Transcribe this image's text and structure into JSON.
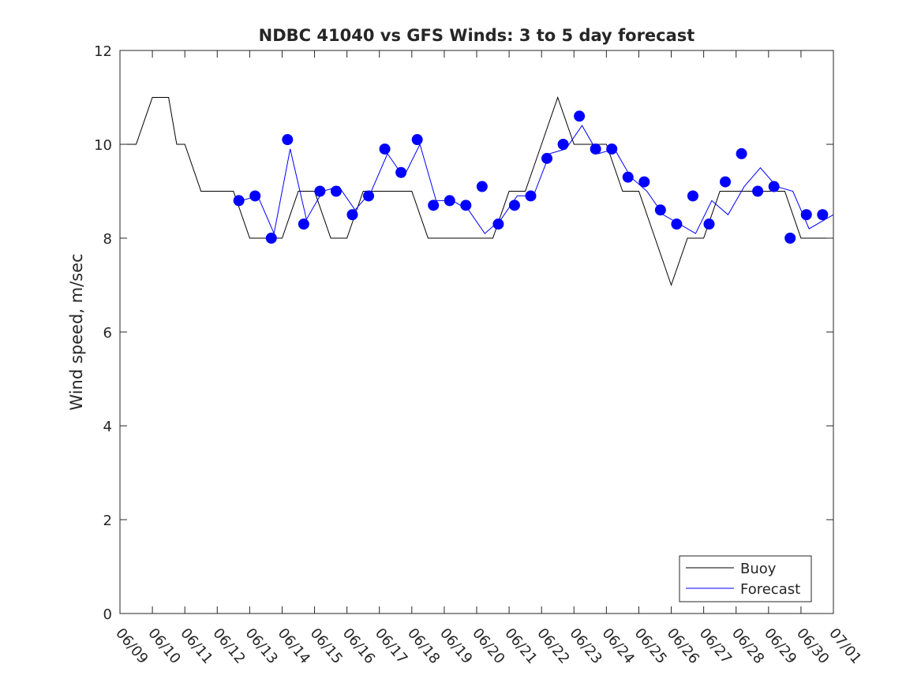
{
  "chart_data": {
    "type": "line",
    "title": "NDBC 41040 vs GFS Winds: 3 to 5 day forecast",
    "xlabel": "",
    "ylabel": "Wind speed, m/sec",
    "xlim": [
      "06/09",
      "07/01"
    ],
    "ylim": [
      0,
      12
    ],
    "x_ticks": [
      "06/09",
      "06/10",
      "06/11",
      "06/12",
      "06/13",
      "06/14",
      "06/15",
      "06/16",
      "06/17",
      "06/18",
      "06/19",
      "06/20",
      "06/21",
      "06/22",
      "06/23",
      "06/24",
      "06/25",
      "06/26",
      "06/27",
      "06/28",
      "06/29",
      "06/30",
      "07/01"
    ],
    "y_ticks": [
      0,
      2,
      4,
      6,
      8,
      10,
      12
    ],
    "grid": false,
    "legend_position": "bottom-right",
    "colors": {
      "buoy": "#000000",
      "forecast": "#0000ff"
    },
    "series": [
      {
        "name": "Buoy",
        "style": "line",
        "x": [
          "06/09 00:00",
          "06/09 12:00",
          "06/10 00:00",
          "06/10 06:00",
          "06/10 12:00",
          "06/10 18:00",
          "06/11 00:00",
          "06/11 12:00",
          "06/12 00:00",
          "06/12 12:00",
          "06/13 00:00",
          "06/13 12:00",
          "06/14 00:00",
          "06/14 12:00",
          "06/15 00:00",
          "06/15 12:00",
          "06/16 00:00",
          "06/16 12:00",
          "06/17 00:00",
          "06/17 12:00",
          "06/18 00:00",
          "06/18 12:00",
          "06/19 00:00",
          "06/19 12:00",
          "06/20 00:00",
          "06/20 12:00",
          "06/21 00:00",
          "06/21 12:00",
          "06/22 00:00",
          "06/22 12:00",
          "06/23 00:00",
          "06/23 12:00",
          "06/24 00:00",
          "06/24 12:00",
          "06/25 00:00",
          "06/25 12:00",
          "06/26 00:00",
          "06/26 12:00",
          "06/27 00:00",
          "06/27 12:00",
          "06/28 00:00",
          "06/28 12:00",
          "06/29 00:00",
          "06/29 12:00",
          "06/30 00:00",
          "06/30 12:00",
          "07/01 00:00"
        ],
        "values": [
          10,
          10,
          11,
          11,
          11,
          10,
          10,
          9,
          9,
          9,
          8,
          8,
          8,
          9,
          9,
          8,
          8,
          9,
          9,
          9,
          9,
          8,
          8,
          8,
          8,
          8,
          9,
          9,
          10,
          11,
          10,
          10,
          10,
          9,
          9,
          8,
          7,
          8,
          8,
          9,
          9,
          9,
          9,
          9,
          8,
          8,
          8
        ]
      },
      {
        "name": "Forecast",
        "style": "line",
        "x": [
          "06/12 18:00",
          "06/13 06:00",
          "06/13 18:00",
          "06/14 06:00",
          "06/14 18:00",
          "06/15 06:00",
          "06/15 18:00",
          "06/16 06:00",
          "06/16 18:00",
          "06/17 06:00",
          "06/17 18:00",
          "06/18 06:00",
          "06/18 18:00",
          "06/19 06:00",
          "06/19 18:00",
          "06/20 06:00",
          "06/20 18:00",
          "06/21 06:00",
          "06/21 18:00",
          "06/22 06:00",
          "06/22 18:00",
          "06/23 06:00",
          "06/23 18:00",
          "06/24 06:00",
          "06/24 18:00",
          "06/25 06:00",
          "06/25 18:00",
          "06/26 06:00",
          "06/26 18:00",
          "06/27 06:00",
          "06/27 18:00",
          "06/28 06:00",
          "06/28 18:00",
          "06/29 06:00",
          "06/29 18:00",
          "06/30 06:00",
          "06/30 18:00",
          "07/01 00:00"
        ],
        "values": [
          8.8,
          8.9,
          8.1,
          9.9,
          8.4,
          9.0,
          9.1,
          8.6,
          9.0,
          9.8,
          9.3,
          10.0,
          8.8,
          8.8,
          8.6,
          8.1,
          8.4,
          8.9,
          8.9,
          9.8,
          9.9,
          10.4,
          9.8,
          9.9,
          9.3,
          9.0,
          8.5,
          8.3,
          8.1,
          8.8,
          8.5,
          9.1,
          9.5,
          9.1,
          9.0,
          8.2,
          8.4,
          8.5
        ]
      },
      {
        "name": "",
        "style": "markers",
        "x": [
          "06/12 16:00",
          "06/13 04:00",
          "06/13 16:00",
          "06/14 04:00",
          "06/14 16:00",
          "06/15 04:00",
          "06/15 16:00",
          "06/16 04:00",
          "06/16 16:00",
          "06/17 04:00",
          "06/17 16:00",
          "06/18 04:00",
          "06/18 16:00",
          "06/19 04:00",
          "06/19 16:00",
          "06/20 04:00",
          "06/20 16:00",
          "06/21 04:00",
          "06/21 16:00",
          "06/22 04:00",
          "06/22 16:00",
          "06/23 04:00",
          "06/23 16:00",
          "06/24 04:00",
          "06/24 16:00",
          "06/25 04:00",
          "06/25 16:00",
          "06/26 04:00",
          "06/26 16:00",
          "06/27 04:00",
          "06/27 16:00",
          "06/28 04:00",
          "06/28 16:00",
          "06/29 04:00",
          "06/29 16:00",
          "06/30 04:00",
          "06/30 16:00"
        ],
        "values": [
          8.8,
          8.9,
          8.0,
          10.1,
          8.3,
          9.0,
          9.0,
          8.5,
          8.9,
          9.9,
          9.4,
          10.1,
          8.7,
          8.8,
          8.7,
          9.1,
          8.3,
          8.7,
          8.9,
          9.7,
          10.0,
          10.6,
          9.9,
          9.9,
          9.3,
          9.2,
          8.6,
          8.3,
          8.9,
          8.3,
          9.2,
          9.8,
          9.0,
          9.1,
          8.0,
          8.5,
          8.5
        ]
      }
    ],
    "legend": [
      "Buoy",
      "Forecast"
    ]
  }
}
